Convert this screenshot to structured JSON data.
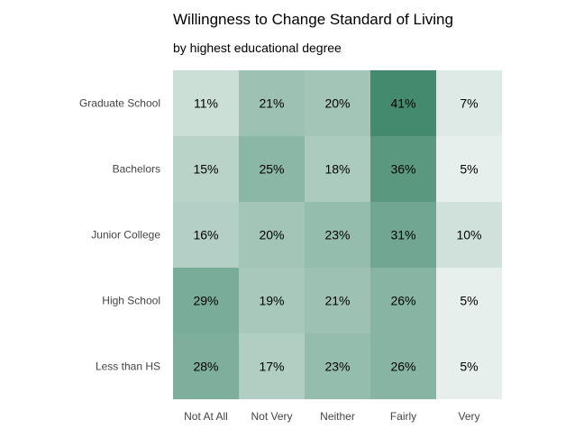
{
  "chart_data": {
    "type": "heatmap",
    "title": "Willingness to Change Standard of Living",
    "subtitle": "by highest educational degree",
    "xlabel": "",
    "ylabel": "",
    "x_categories": [
      "Not At All",
      "Not Very",
      "Neither",
      "Fairly",
      "Very"
    ],
    "y_categories": [
      "Graduate School",
      "Bachelors",
      "Junior College",
      "High School",
      "Less than HS"
    ],
    "values": [
      [
        11,
        21,
        20,
        41,
        7
      ],
      [
        15,
        25,
        18,
        36,
        5
      ],
      [
        16,
        20,
        23,
        31,
        10
      ],
      [
        29,
        19,
        21,
        26,
        5
      ],
      [
        28,
        17,
        23,
        26,
        5
      ]
    ],
    "value_suffix": "%",
    "color_low": "#ffffff",
    "color_high": "#2e7d5f",
    "grid": false,
    "legend": "none"
  }
}
